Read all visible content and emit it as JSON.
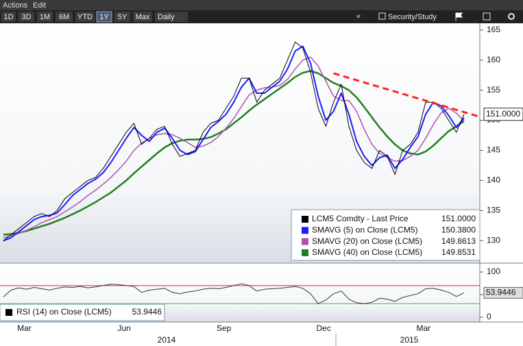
{
  "toolbar": {
    "menu": [
      "Actions",
      "Edit"
    ],
    "periods": [
      "1D",
      "3D",
      "1M",
      "6M",
      "YTD",
      "1Y",
      "5Y",
      "Max"
    ],
    "selected_period": 5,
    "frequency": "Daily",
    "tools": [
      "Security/Study"
    ]
  },
  "chart_data": {
    "type": "line",
    "categories": [
      null,
      null,
      "Mar",
      null,
      null,
      null,
      null,
      null,
      null,
      null,
      null,
      null,
      null,
      null,
      null,
      "Jun",
      null,
      null,
      null,
      null,
      null,
      null,
      null,
      null,
      null,
      null,
      null,
      null,
      "Sep",
      null,
      null,
      null,
      null,
      null,
      null,
      null,
      null,
      null,
      null,
      null,
      null,
      "Dec",
      null,
      null,
      null,
      null,
      null,
      null,
      null,
      null,
      null,
      null,
      null,
      null,
      "Mar",
      null,
      null,
      null,
      null,
      null,
      null
    ],
    "year_labels": [
      "2014",
      "2015"
    ],
    "series": [
      {
        "name": "LCM5 Comdty - Last Price",
        "last_label": "151.0000",
        "color": "#000000",
        "values": [
          130,
          131,
          132,
          133,
          134,
          134.5,
          134,
          135,
          137,
          138,
          139,
          140,
          140.5,
          142,
          144,
          146,
          148,
          149.5,
          146,
          147,
          148.5,
          149,
          146,
          144,
          144.5,
          145,
          148,
          149.5,
          150,
          152,
          154,
          157,
          157,
          153,
          155,
          156,
          157,
          160,
          163,
          162,
          158,
          152,
          149,
          153,
          156,
          149,
          145,
          143,
          142,
          145,
          144,
          141,
          145,
          146,
          148,
          153,
          153,
          152,
          150,
          148,
          151
        ]
      },
      {
        "name": "SMAVG (5) on Close (LCM5)",
        "last_label": "150.3800",
        "color": "#1a1aff",
        "values": [
          130,
          130.5,
          131.5,
          132.5,
          133.5,
          134,
          134.2,
          134.6,
          136,
          137.5,
          138.5,
          139.5,
          140.2,
          141.3,
          143,
          145,
          147,
          148.8,
          147.5,
          146.5,
          148,
          148.7,
          147,
          145,
          144.3,
          144.8,
          146.8,
          148.8,
          149.8,
          151,
          153,
          155.5,
          157,
          154.5,
          154.5,
          155.5,
          156.5,
          158.5,
          161.5,
          162.3,
          159.5,
          154,
          150,
          151.5,
          154.5,
          151,
          146.5,
          144,
          142.5,
          143.8,
          144.2,
          142,
          143.5,
          145.5,
          147.3,
          151,
          153,
          152.4,
          150.8,
          148.8,
          150.38
        ]
      },
      {
        "name": "SMAVG (20) on Close (LCM5)",
        "last_label": "149.8613",
        "color": "#b050b0",
        "values": [
          130.5,
          130.8,
          131.2,
          131.7,
          132.3,
          133,
          133.5,
          134,
          134.8,
          135.6,
          136.5,
          137.5,
          138.4,
          139.4,
          140.5,
          141.8,
          143.2,
          145,
          146.2,
          147,
          147.6,
          147.8,
          147.6,
          147,
          146.3,
          145.5,
          145.7,
          146.3,
          147.3,
          148.7,
          150.3,
          152.3,
          154.2,
          155,
          155.4,
          155.5,
          155.8,
          156.8,
          158.5,
          160,
          160.5,
          159,
          156.5,
          154,
          153.3,
          153.3,
          151.5,
          148.5,
          146,
          144.5,
          143.8,
          143.2,
          143.3,
          144,
          145,
          147,
          149.3,
          151.2,
          152,
          151.2,
          149.8613
        ]
      },
      {
        "name": "SMAVG (40) on Close (LCM5)",
        "last_label": "149.8531",
        "color": "#1e7e1e",
        "values": [
          131,
          131.1,
          131.3,
          131.6,
          132,
          132.4,
          132.8,
          133.3,
          133.8,
          134.4,
          135,
          135.7,
          136.4,
          137.2,
          138,
          139,
          140,
          141.2,
          142.3,
          143.4,
          144.5,
          145.5,
          146.2,
          146.6,
          146.8,
          146.8,
          146.9,
          147.2,
          147.8,
          148.5,
          149.5,
          150.5,
          151.6,
          152.6,
          153.5,
          154.4,
          155.3,
          156.2,
          157.2,
          157.9,
          158.2,
          157.8,
          157,
          156.2,
          155.7,
          155,
          153.8,
          152.2,
          150.5,
          148.8,
          147.3,
          146,
          145,
          144.5,
          144.3,
          144.8,
          145.8,
          147,
          148.2,
          149,
          149.8531
        ]
      }
    ],
    "trendline": {
      "x": [
        43,
        62
      ],
      "y": [
        157.8,
        150.6
      ],
      "color": "#ff2020"
    },
    "ylim": [
      126.5,
      166
    ],
    "yticks": [
      130,
      135,
      140,
      145,
      150,
      155,
      160,
      165
    ],
    "lower_panel": {
      "type": "line",
      "series": [
        {
          "name": "RSI (14) on Close (LCM5)",
          "last_label": "53.9446",
          "color": "#333333",
          "values": [
            45,
            60,
            65,
            62,
            66,
            63,
            60,
            64,
            67,
            66,
            68,
            65,
            67,
            70,
            73,
            72,
            70,
            68,
            55,
            60,
            62,
            64,
            55,
            52,
            56,
            58,
            62,
            64,
            63,
            66,
            70,
            74,
            70,
            58,
            62,
            63,
            64,
            66,
            68,
            64,
            52,
            30,
            38,
            52,
            58,
            40,
            32,
            30,
            33,
            42,
            40,
            35,
            44,
            48,
            52,
            63,
            64,
            60,
            55,
            46,
            53.9446
          ]
        }
      ],
      "levels": [
        {
          "value": 70,
          "color": "#e02020"
        },
        {
          "value": 30,
          "color": "#30c030"
        }
      ],
      "ylim": [
        -10.6,
        116.7
      ],
      "yticks": [
        0,
        50,
        100
      ]
    }
  }
}
